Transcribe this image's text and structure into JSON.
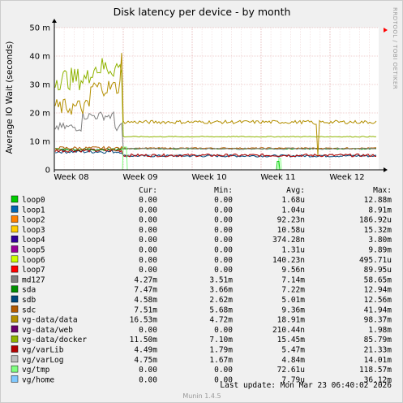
{
  "chart_data": {
    "type": "line",
    "title": "Disk latency per device - by month",
    "ylabel": "Average IO Wait (seconds)",
    "xlabel": "",
    "ylim": [
      0,
      0.05
    ],
    "y_ticks": [
      "0",
      "10 m",
      "20 m",
      "30 m",
      "40 m",
      "50 m"
    ],
    "x_ticks": [
      "Week 08",
      "Week 09",
      "Week 10",
      "Week 11",
      "Week 12"
    ],
    "grid": true,
    "legend_headers": {
      "cur": "Cur:",
      "min": "Min:",
      "avg": "Avg:",
      "max": "Max:"
    },
    "series": [
      {
        "name": "loop0",
        "color": "#00cc00",
        "cur": "0.00",
        "min": "0.00",
        "avg": "1.68u",
        "max": "12.88m"
      },
      {
        "name": "loop1",
        "color": "#0066b3",
        "cur": "0.00",
        "min": "0.00",
        "avg": "1.04u",
        "max": "8.91m"
      },
      {
        "name": "loop2",
        "color": "#ff8000",
        "cur": "0.00",
        "min": "0.00",
        "avg": "92.23n",
        "max": "186.92u"
      },
      {
        "name": "loop3",
        "color": "#ffcc00",
        "cur": "0.00",
        "min": "0.00",
        "avg": "10.58u",
        "max": "15.32m"
      },
      {
        "name": "loop4",
        "color": "#330099",
        "cur": "0.00",
        "min": "0.00",
        "avg": "374.28n",
        "max": "3.80m"
      },
      {
        "name": "loop5",
        "color": "#990099",
        "cur": "0.00",
        "min": "0.00",
        "avg": "1.31u",
        "max": "9.89m"
      },
      {
        "name": "loop6",
        "color": "#ccff00",
        "cur": "0.00",
        "min": "0.00",
        "avg": "140.23n",
        "max": "495.71u"
      },
      {
        "name": "loop7",
        "color": "#ff0000",
        "cur": "0.00",
        "min": "0.00",
        "avg": "9.56n",
        "max": "89.95u"
      },
      {
        "name": "md127",
        "color": "#808080",
        "cur": "4.27m",
        "min": "3.51m",
        "avg": "7.14m",
        "max": "58.65m"
      },
      {
        "name": "sda",
        "color": "#008f00",
        "cur": "7.47m",
        "min": "3.66m",
        "avg": "7.22m",
        "max": "12.94m"
      },
      {
        "name": "sdb",
        "color": "#00487d",
        "cur": "4.58m",
        "min": "2.62m",
        "avg": "5.01m",
        "max": "12.56m"
      },
      {
        "name": "sdc",
        "color": "#b35a00",
        "cur": "7.51m",
        "min": "5.68m",
        "avg": "9.36m",
        "max": "41.94m"
      },
      {
        "name": "vg-data/data",
        "color": "#b38f00",
        "cur": "16.53m",
        "min": "4.72m",
        "avg": "18.91m",
        "max": "98.37m"
      },
      {
        "name": "vg-data/web",
        "color": "#6b006b",
        "cur": "0.00",
        "min": "0.00",
        "avg": "210.44n",
        "max": "1.98m"
      },
      {
        "name": "vg-data/docker",
        "color": "#8fb300",
        "cur": "11.50m",
        "min": "7.10m",
        "avg": "15.45m",
        "max": "85.79m"
      },
      {
        "name": "vg/varLib",
        "color": "#b30000",
        "cur": "4.49m",
        "min": "1.79m",
        "avg": "5.47m",
        "max": "21.33m"
      },
      {
        "name": "vg/varLog",
        "color": "#bebebe",
        "cur": "4.75m",
        "min": "1.67m",
        "avg": "4.84m",
        "max": "14.01m"
      },
      {
        "name": "vg/tmp",
        "color": "#80ff80",
        "cur": "0.00",
        "min": "0.00",
        "avg": "72.61u",
        "max": "118.57m"
      },
      {
        "name": "vg/home",
        "color": "#80c9ff",
        "cur": "0.00",
        "min": "0.00",
        "avg": "7.79u",
        "max": "36.12m"
      }
    ],
    "last_update": "Last update:  Mon Mar 23 06:40:02 2026",
    "side_label": "RRDTOOL / TOBI OETIKER",
    "footer": "Munin 1.4.5"
  }
}
